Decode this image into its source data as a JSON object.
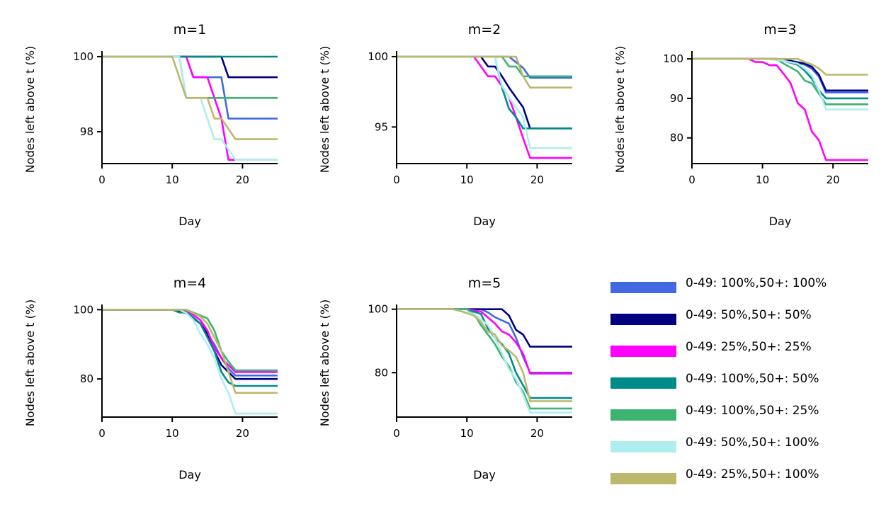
{
  "chart_data": {
    "type": "line",
    "xlabel": "Day",
    "ylabel": "Nodes left above t (%)",
    "legend_placement": "bottom-right",
    "grid": false,
    "legend": [
      {
        "name": "0-49: 100%,50+: 100%",
        "color": "#4169E1"
      },
      {
        "name": "0-49: 50%,50+: 50%",
        "color": "#000080"
      },
      {
        "name": "0-49: 25%,50+: 25%",
        "color": "#FF00FF"
      },
      {
        "name": "0-49: 100%,50+: 50%",
        "color": "#008B8B"
      },
      {
        "name": "0-49: 100%,50+: 25%",
        "color": "#3CB371"
      },
      {
        "name": "0-49: 50%,50+: 100%",
        "color": "#AFEEEE"
      },
      {
        "name": "0-49: 25%,50+: 100%",
        "color": "#BDB76B"
      }
    ],
    "panels": [
      {
        "title": "m=1",
        "xlim": [
          0,
          25
        ],
        "ylim": [
          97.15,
          100.15
        ],
        "xticks": [
          0,
          10,
          20
        ],
        "yticks": [
          98,
          100
        ],
        "series": [
          {
            "color": "#4169E1",
            "x": [
              0,
              12,
              13,
              17,
              18,
              25
            ],
            "y": [
              100,
              100,
              99.45,
              99.45,
              98.35,
              98.35
            ]
          },
          {
            "color": "#000080",
            "x": [
              0,
              17,
              18,
              25
            ],
            "y": [
              100,
              100,
              99.45,
              99.45
            ]
          },
          {
            "color": "#FF00FF",
            "x": [
              0,
              12,
              13,
              15,
              16,
              17,
              18,
              25
            ],
            "y": [
              100,
              100,
              99.45,
              99.45,
              98.9,
              98.35,
              97.25,
              97.25
            ]
          },
          {
            "color": "#008B8B",
            "x": [
              0,
              25
            ],
            "y": [
              100,
              100
            ]
          },
          {
            "color": "#3CB371",
            "x": [
              0,
              11,
              12,
              16,
              17,
              25
            ],
            "y": [
              100,
              100,
              98.9,
              98.9,
              98.9,
              98.9
            ]
          },
          {
            "color": "#AFEEEE",
            "x": [
              0,
              11,
              12,
              14,
              16,
              17,
              19,
              25
            ],
            "y": [
              100,
              100,
              98.9,
              98.9,
              97.8,
              97.8,
              97.25,
              97.25
            ]
          },
          {
            "color": "#BDB76B",
            "x": [
              0,
              10,
              12,
              15,
              16,
              17,
              19,
              25
            ],
            "y": [
              100,
              100,
              98.9,
              98.9,
              98.35,
              98.35,
              97.8,
              97.8
            ]
          }
        ]
      },
      {
        "title": "m=2",
        "xlim": [
          0,
          25
        ],
        "ylim": [
          92.4,
          100.4
        ],
        "xticks": [
          0,
          10,
          20
        ],
        "yticks": [
          95,
          100
        ],
        "series": [
          {
            "color": "#4169E1",
            "x": [
              0,
              16,
              18,
              19,
              25
            ],
            "y": [
              100,
              100,
              99.2,
              98.5,
              98.5
            ]
          },
          {
            "color": "#000080",
            "x": [
              0,
              12,
              13,
              14,
              15,
              16,
              17,
              18,
              19,
              25
            ],
            "y": [
              100,
              100,
              99.3,
              99.3,
              98.6,
              97.8,
              97.1,
              96.4,
              94.9,
              94.9
            ]
          },
          {
            "color": "#FF00FF",
            "x": [
              0,
              11,
              13,
              14,
              15,
              16,
              17,
              18,
              19,
              25
            ],
            "y": [
              100,
              100,
              98.6,
              98.6,
              97.9,
              97.1,
              95.7,
              94.2,
              92.8,
              92.8
            ]
          },
          {
            "color": "#008B8B",
            "x": [
              0,
              14,
              15,
              16,
              17,
              18,
              25
            ],
            "y": [
              100,
              100,
              97.8,
              96.3,
              95.7,
              94.9,
              94.9
            ]
          },
          {
            "color": "#3CB371",
            "x": [
              0,
              15,
              16,
              17,
              18,
              19,
              25
            ],
            "y": [
              100,
              100,
              99.3,
              99.3,
              98.6,
              98.6,
              98.6
            ]
          },
          {
            "color": "#AFEEEE",
            "x": [
              0,
              14,
              15,
              16,
              17,
              18,
              19,
              25
            ],
            "y": [
              100,
              100,
              97.9,
              97.1,
              96.4,
              95.7,
              93.5,
              93.5
            ]
          },
          {
            "color": "#BDB76B",
            "x": [
              0,
              17,
              18,
              19,
              25
            ],
            "y": [
              100,
              100,
              98.6,
              97.8,
              97.8
            ]
          }
        ]
      },
      {
        "title": "m=3",
        "xlim": [
          0,
          25
        ],
        "ylim": [
          73.5,
          102
        ],
        "xticks": [
          0,
          10,
          20
        ],
        "yticks": [
          80,
          90,
          100
        ],
        "series": [
          {
            "color": "#4169E1",
            "x": [
              0,
              12,
              14,
              16,
              17,
              18,
              19,
              25
            ],
            "y": [
              100,
              100,
              99.5,
              98.5,
              97.5,
              95.5,
              91.5,
              91.5
            ]
          },
          {
            "color": "#000080",
            "x": [
              0,
              12,
              14,
              16,
              17,
              18,
              19,
              25
            ],
            "y": [
              100,
              100,
              99.5,
              98.8,
              98,
              96,
              92,
              92
            ]
          },
          {
            "color": "#FF00FF",
            "x": [
              0,
              8,
              9,
              10,
              11,
              12,
              13,
              14,
              15,
              16,
              17,
              18,
              19,
              25
            ],
            "y": [
              100,
              100,
              99.2,
              99.2,
              98.4,
              98.4,
              96.2,
              93.8,
              88.8,
              87.2,
              81.6,
              79.4,
              74.4,
              74.4
            ]
          },
          {
            "color": "#008B8B",
            "x": [
              0,
              11,
              13,
              15,
              16,
              17,
              18,
              19,
              25
            ],
            "y": [
              100,
              100,
              99.5,
              98.5,
              97,
              95,
              92,
              90,
              90
            ]
          },
          {
            "color": "#3CB371",
            "x": [
              0,
              12,
              13,
              14,
              15,
              16,
              17,
              18,
              19,
              25
            ],
            "y": [
              100,
              100,
              98.8,
              97.8,
              96.8,
              94.5,
              93.8,
              91.2,
              88.5,
              88.5
            ]
          },
          {
            "color": "#AFEEEE",
            "x": [
              0,
              11,
              13,
              15,
              16,
              17,
              18,
              19,
              25
            ],
            "y": [
              100,
              100,
              99.5,
              98.8,
              97.5,
              95.8,
              92,
              87.2,
              87.2
            ]
          },
          {
            "color": "#BDB76B",
            "x": [
              0,
              15,
              16,
              17,
              18,
              19,
              25
            ],
            "y": [
              100,
              100,
              99.2,
              98.6,
              97.6,
              96,
              96
            ]
          }
        ]
      },
      {
        "title": "m=4",
        "xlim": [
          0,
          25
        ],
        "ylim": [
          69,
          101.5
        ],
        "xticks": [
          0,
          10,
          20
        ],
        "yticks": [
          80,
          100
        ],
        "series": [
          {
            "color": "#4169E1",
            "x": [
              0,
              10,
              12,
              14,
              16,
              17,
              18,
              19,
              25
            ],
            "y": [
              100,
              100,
              99.5,
              96,
              90,
              86,
              83,
              81,
              81
            ]
          },
          {
            "color": "#000080",
            "x": [
              0,
              10,
              12,
              14,
              15,
              16,
              17,
              18,
              19,
              25
            ],
            "y": [
              100,
              100,
              99,
              96,
              93,
              88,
              84,
              82,
              80,
              80
            ]
          },
          {
            "color": "#FF00FF",
            "x": [
              0,
              12,
              14,
              15,
              16,
              17,
              18,
              19,
              25
            ],
            "y": [
              100,
              100,
              97,
              94,
              89,
              86,
              84,
              82,
              82
            ]
          },
          {
            "color": "#008B8B",
            "x": [
              0,
              10,
              11,
              12,
              14,
              16,
              17,
              18,
              19,
              25
            ],
            "y": [
              100,
              100,
              99.2,
              99.2,
              96,
              88,
              82,
              79,
              78,
              78
            ]
          },
          {
            "color": "#3CB371",
            "x": [
              0,
              12,
              15,
              16,
              17,
              18,
              19,
              25
            ],
            "y": [
              100,
              100,
              97.5,
              94,
              88,
              85,
              82.5,
              82.5
            ]
          },
          {
            "color": "#AFEEEE",
            "x": [
              0,
              11,
              12,
              13,
              14,
              15,
              16,
              17,
              18,
              19,
              25
            ],
            "y": [
              100,
              100,
              99,
              97,
              93,
              90,
              86,
              80,
              76,
              70,
              70
            ]
          },
          {
            "color": "#BDB76B",
            "x": [
              0,
              12,
              14,
              15,
              16,
              17,
              18,
              19,
              25
            ],
            "y": [
              100,
              100,
              98,
              96,
              92,
              88,
              82,
              76,
              76
            ]
          }
        ]
      },
      {
        "title": "m=5",
        "xlim": [
          0,
          25
        ],
        "ylim": [
          66,
          101.5
        ],
        "xticks": [
          0,
          10,
          20
        ],
        "yticks": [
          80,
          100
        ],
        "series": [
          {
            "color": "#4169E1",
            "x": [
              0,
              12,
              13,
              14,
              15,
              16,
              17,
              18,
              19,
              25
            ],
            "y": [
              100,
              100,
              99,
              97.5,
              96.5,
              95.5,
              91,
              85,
              80,
              80
            ]
          },
          {
            "color": "#000080",
            "x": [
              0,
              15,
              16,
              17,
              18,
              19,
              25
            ],
            "y": [
              100,
              100,
              98,
              93.5,
              92,
              88.2,
              88.2
            ]
          },
          {
            "color": "#FF00FF",
            "x": [
              0,
              10,
              12,
              14,
              15,
              16,
              17,
              18,
              19,
              25
            ],
            "y": [
              100,
              100,
              99.3,
              95.5,
              93,
              92,
              89.5,
              86,
              79.7,
              79.7
            ]
          },
          {
            "color": "#008B8B",
            "x": [
              0,
              10,
              12,
              13,
              14,
              15,
              16,
              17,
              18,
              19,
              25
            ],
            "y": [
              100,
              100,
              98.5,
              94,
              91,
              89,
              86,
              80,
              76,
              72,
              72
            ]
          },
          {
            "color": "#3CB371",
            "x": [
              0,
              10,
              11,
              12,
              13,
              14,
              15,
              16,
              17,
              18,
              19,
              25
            ],
            "y": [
              100,
              100,
              98.5,
              95,
              92,
              89,
              85,
              82,
              77,
              74,
              68.7,
              68.7
            ]
          },
          {
            "color": "#AFEEEE",
            "x": [
              0,
              8,
              11,
              13,
              14,
              15,
              16,
              17,
              18,
              19,
              25
            ],
            "y": [
              100,
              100,
              98.5,
              95,
              91,
              86,
              81,
              78,
              73,
              67.4,
              67.4
            ]
          },
          {
            "color": "#BDB76B",
            "x": [
              0,
              8,
              9,
              11,
              12,
              13,
              14,
              15,
              16,
              17,
              18,
              19,
              25
            ],
            "y": [
              100,
              100,
              99.5,
              98,
              96,
              93,
              92,
              88.5,
              87,
              85,
              80,
              71,
              71
            ]
          }
        ]
      }
    ]
  }
}
